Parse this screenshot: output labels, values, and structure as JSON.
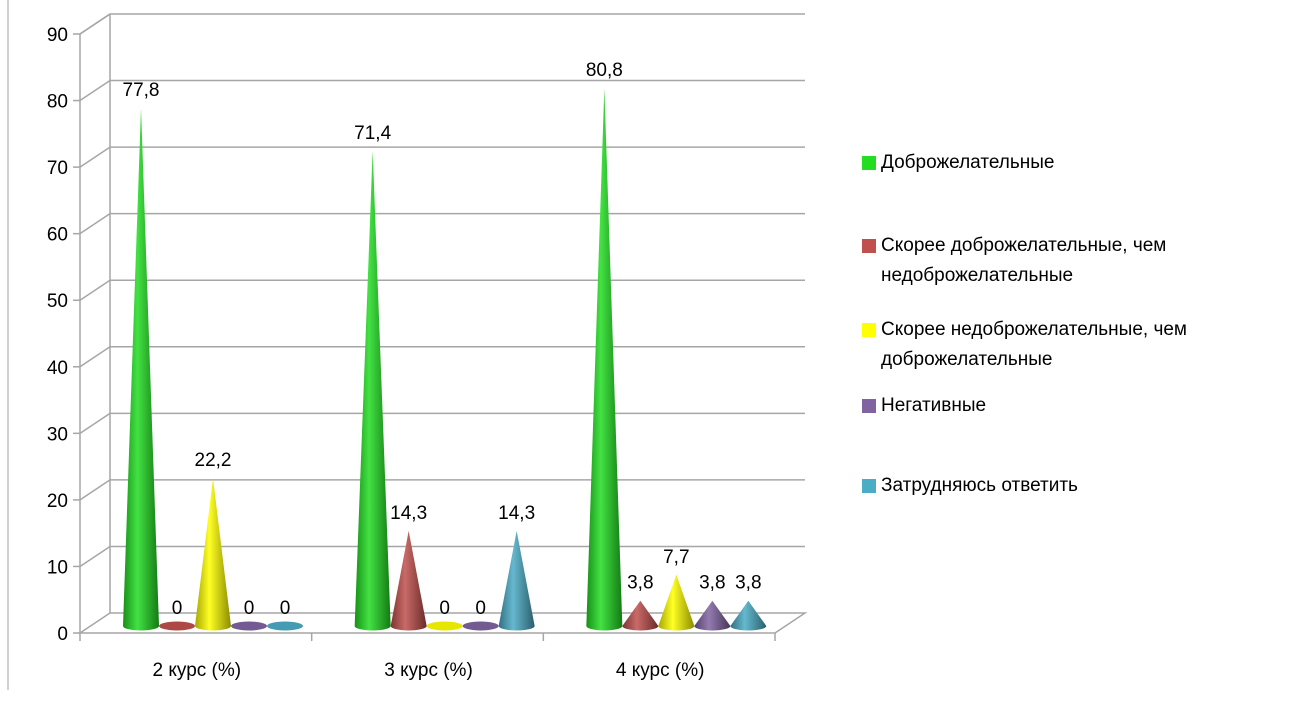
{
  "chart_data": {
    "type": "bar",
    "categories": [
      "2 курс (%)",
      "3 курс (%)",
      "4 курс (%)"
    ],
    "series": [
      {
        "name": "Доброжелательные",
        "values": [
          77.8,
          71.4,
          80.8
        ],
        "labels": [
          "77,8",
          "71,4",
          "80,8"
        ],
        "color": "#22dd22"
      },
      {
        "name": "Скорее доброжелательные, чем недоброжелательные",
        "values": [
          0,
          14.3,
          3.8
        ],
        "labels": [
          "0",
          "14,3",
          "3,8"
        ],
        "color": "#c0504d"
      },
      {
        "name": "Скорее недоброжелательные, чем доброжелательные",
        "values": [
          22.2,
          0,
          7.7
        ],
        "labels": [
          "22,2",
          "0",
          "7,7"
        ],
        "color": "#ffff00"
      },
      {
        "name": "Негативные",
        "values": [
          0,
          0,
          3.8
        ],
        "labels": [
          "0",
          "0",
          "3,8"
        ],
        "color": "#8064a2"
      },
      {
        "name": "Затрудняюсь ответить",
        "values": [
          0,
          14.3,
          3.8
        ],
        "labels": [
          "0",
          "14,3",
          "3,8"
        ],
        "color": "#4bacc6"
      }
    ],
    "y_ticks": [
      "0",
      "10",
      "20",
      "30",
      "40",
      "50",
      "60",
      "70",
      "80",
      "90"
    ],
    "ylim": [
      0,
      90
    ],
    "grid": true,
    "legend_position": "right",
    "bar_shape": "cone-3d"
  }
}
